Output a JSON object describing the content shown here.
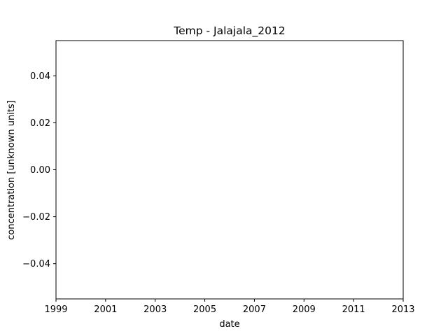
{
  "chart_data": {
    "type": "line",
    "title": "Temp - Jalajala_2012",
    "xlabel": "date",
    "ylabel": "concentration [unknown units]",
    "x_scale": "date",
    "xlim": [
      1999,
      2013
    ],
    "ylim": [
      -0.055,
      0.055
    ],
    "x_ticks": [
      1999,
      2001,
      2003,
      2005,
      2007,
      2009,
      2011,
      2013
    ],
    "x_tick_labels": [
      "1999",
      "2001",
      "2003",
      "2005",
      "2007",
      "2009",
      "2011",
      "2013"
    ],
    "y_ticks": [
      -0.04,
      -0.02,
      0.0,
      0.02,
      0.04
    ],
    "y_tick_labels": [
      "−0.04",
      "−0.02",
      "0.00",
      "0.02",
      "0.04"
    ],
    "series": [],
    "grid": false,
    "colors": {
      "background": "#ffffff",
      "axes": "#000000",
      "text": "#000000"
    }
  }
}
